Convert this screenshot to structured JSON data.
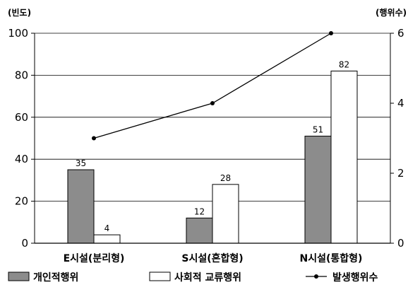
{
  "chart_data": {
    "type": "bar",
    "categories": [
      "E시설(분리형)",
      "S시설(혼합형)",
      "N시설(통합형)"
    ],
    "ylabel_left": "(빈도)",
    "ylabel_right": "(행위수)",
    "ylim_left": [
      0,
      100
    ],
    "yticks_left": [
      "0",
      "20",
      "40",
      "60",
      "80",
      "100"
    ],
    "ylim_right": [
      0,
      6
    ],
    "yticks_right": [
      "0",
      "2",
      "4",
      "6"
    ],
    "grid": true,
    "legend_position": "bottom",
    "series": [
      {
        "name": "개인적행위",
        "type": "bar",
        "axis": "left",
        "color": "#8c8c8c",
        "values": [
          35,
          12,
          51
        ],
        "labels": [
          "35",
          "12",
          "51"
        ]
      },
      {
        "name": "사회적 교류행위",
        "type": "bar",
        "axis": "left",
        "color": "#ffffff",
        "values": [
          4,
          28,
          82
        ],
        "labels": [
          "4",
          "28",
          "82"
        ]
      },
      {
        "name": "발생행위수",
        "type": "line",
        "axis": "right",
        "color": "#000000",
        "values": [
          3,
          4,
          6
        ]
      }
    ]
  }
}
